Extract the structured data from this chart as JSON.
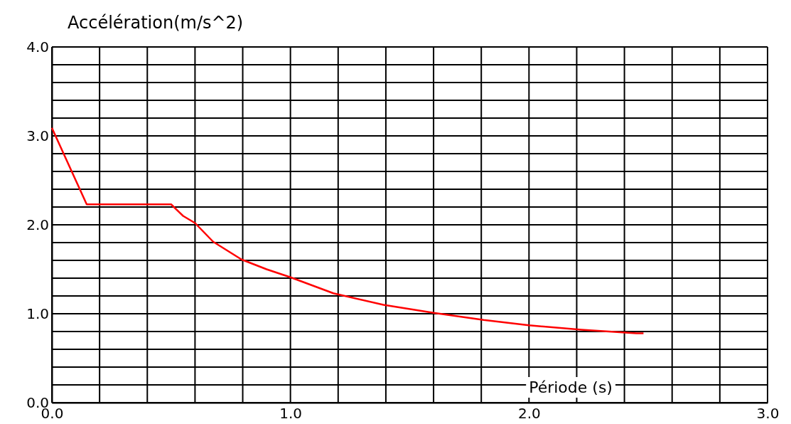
{
  "chart_data": {
    "type": "line",
    "xlabel": "Période (s)",
    "ylabel": "Accélération(m/s^2)",
    "x": [
      0,
      0.146,
      0.5,
      0.55,
      0.6,
      0.676,
      0.795,
      0.9,
      1.0,
      1.18,
      1.39,
      1.6,
      1.81,
      2.0,
      2.22,
      2.45,
      2.48
    ],
    "series": [
      {
        "color": "#ff0000",
        "values": [
          3.09,
          2.23,
          2.23,
          2.1,
          2.02,
          1.81,
          1.61,
          1.5,
          1.41,
          1.23,
          1.1,
          1.01,
          0.93,
          0.87,
          0.82,
          0.78,
          0.78
        ]
      }
    ],
    "xlim": [
      0,
      3
    ],
    "ylim": [
      0,
      4
    ],
    "xticks": [
      {
        "value": 0,
        "label": "0.0"
      },
      {
        "value": 0.2,
        "label": null
      },
      {
        "value": 0.4,
        "label": null
      },
      {
        "value": 0.6,
        "label": null
      },
      {
        "value": 0.8,
        "label": null
      },
      {
        "value": 1,
        "label": "1.0"
      },
      {
        "value": 1.2,
        "label": null
      },
      {
        "value": 1.4,
        "label": null
      },
      {
        "value": 1.6,
        "label": null
      },
      {
        "value": 1.8,
        "label": null
      },
      {
        "value": 2,
        "label": "2.0"
      },
      {
        "value": 2.2,
        "label": null
      },
      {
        "value": 2.4,
        "label": null
      },
      {
        "value": 2.6,
        "label": null
      },
      {
        "value": 2.8,
        "label": null
      },
      {
        "value": 3,
        "label": "3.0"
      }
    ],
    "yticks": [
      {
        "value": 0,
        "label": "0.0"
      },
      {
        "value": 0.2,
        "label": null
      },
      {
        "value": 0.4,
        "label": null
      },
      {
        "value": 0.6,
        "label": null
      },
      {
        "value": 0.8,
        "label": null
      },
      {
        "value": 1,
        "label": "1.0"
      },
      {
        "value": 1.2,
        "label": null
      },
      {
        "value": 1.4,
        "label": null
      },
      {
        "value": 1.6,
        "label": null
      },
      {
        "value": 1.8,
        "label": null
      },
      {
        "value": 2,
        "label": "2.0"
      },
      {
        "value": 2.2,
        "label": null
      },
      {
        "value": 2.4,
        "label": null
      },
      {
        "value": 2.6,
        "label": null
      },
      {
        "value": 2.8,
        "label": null
      },
      {
        "value": 3,
        "label": "3.0"
      },
      {
        "value": 3.2,
        "label": null
      },
      {
        "value": 3.4,
        "label": null
      },
      {
        "value": 3.6,
        "label": null
      },
      {
        "value": 3.8,
        "label": null
      },
      {
        "value": 4,
        "label": "4.0"
      }
    ],
    "grid": true,
    "marker": "none",
    "line_style": "solid"
  }
}
